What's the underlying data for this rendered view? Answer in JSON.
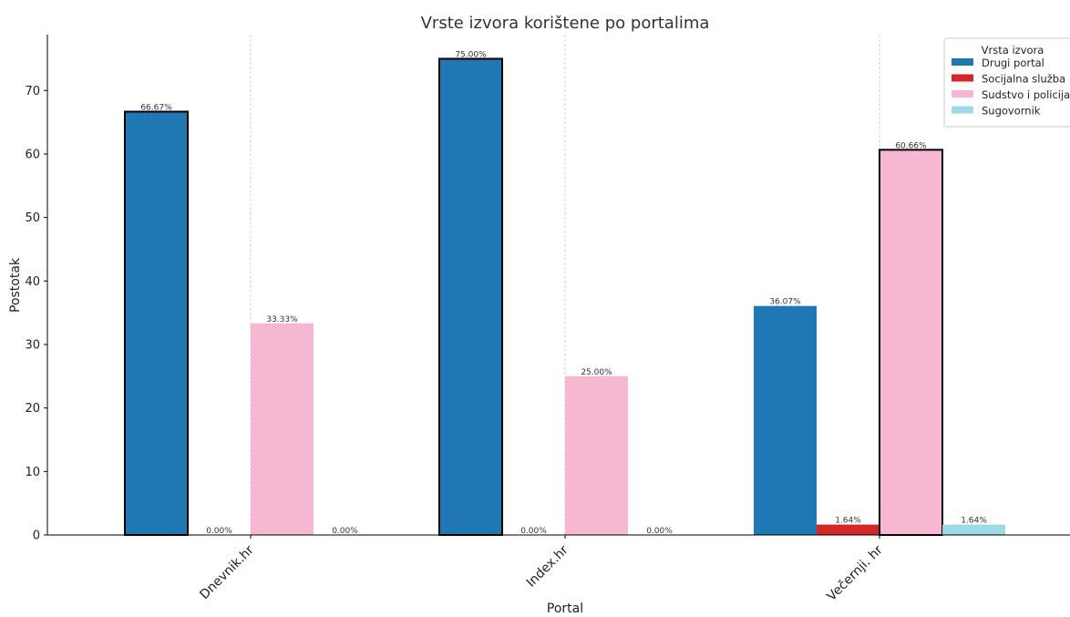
{
  "chart_data": {
    "type": "bar",
    "title": "Vrste izvora korištene po portalima",
    "xlabel": "Portal",
    "ylabel": "Postotak",
    "categories": [
      "Dnevnik.hr",
      "Index.hr",
      "Večernji. hr"
    ],
    "ylim": [
      0,
      78.8
    ],
    "yticks": [
      0,
      10,
      20,
      30,
      40,
      50,
      60,
      70
    ],
    "grid": "vertical-dashed",
    "legend": {
      "title": "Vrsta izvora",
      "placement": "top-right"
    },
    "series": [
      {
        "name": "Drugi portal",
        "color": "#1f77b4",
        "values": [
          66.67,
          75.0,
          36.07
        ],
        "labels": [
          "66.67%",
          "75.00%",
          "36.07%"
        ],
        "highlighted": [
          true,
          true,
          false
        ]
      },
      {
        "name": "Socijalna služba",
        "color": "#d62728",
        "values": [
          0.0,
          0.0,
          1.64
        ],
        "labels": [
          "0.00%",
          "0.00%",
          "1.64%"
        ],
        "highlighted": [
          false,
          false,
          false
        ]
      },
      {
        "name": "Sudstvo i policija",
        "color": "#f7b6d2",
        "values": [
          33.33,
          25.0,
          60.66
        ],
        "labels": [
          "33.33%",
          "25.00%",
          "60.66%"
        ],
        "highlighted": [
          false,
          false,
          true
        ]
      },
      {
        "name": "Sugovornik",
        "color": "#9edae5",
        "values": [
          0.0,
          0.0,
          1.64
        ],
        "labels": [
          "0.00%",
          "0.00%",
          "1.64%"
        ],
        "highlighted": [
          false,
          false,
          false
        ]
      }
    ]
  }
}
